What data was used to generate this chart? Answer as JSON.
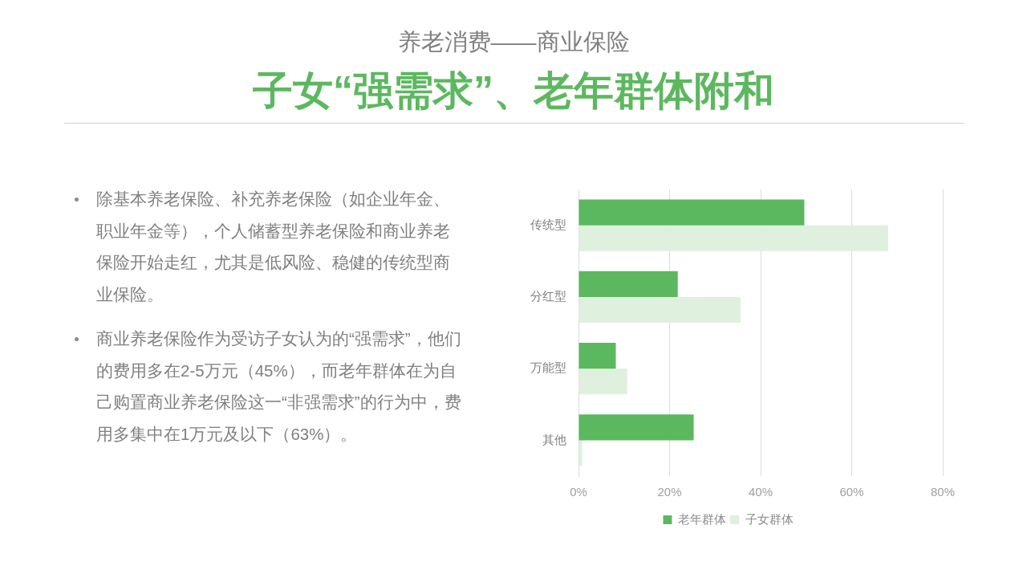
{
  "chart_data": {
    "type": "bar",
    "orientation": "horizontal",
    "subtitle": "养老消费——商业保险",
    "title": "子女“强需求”、老年群体附和",
    "annotations": [
      "除基本养老保险、补充养老保险（如企业年金、职业年金等），个人储蓄型养老保险和商业养老保险开始走红，尤其是低风险、稳健的传统型商业保险。",
      "商业养老保险作为受访子女认为的“强需求”，他们的费用多在2-5万元（45%），而老年群体在为自己购置商业养老保险这一“非强需求”的行为中，费用多集中在1万元及以下（63%）。"
    ],
    "categories": [
      "传统型",
      "分红型",
      "万能型",
      "其他"
    ],
    "series": [
      {
        "name": "老年群体",
        "color": "#5cb85f",
        "values": [
          49.6,
          21.8,
          8.2,
          25.3
        ]
      },
      {
        "name": "子女群体",
        "color": "#dff0de",
        "values": [
          68.0,
          35.6,
          10.7,
          0.8
        ]
      }
    ],
    "xlim": [
      0,
      80
    ],
    "xticks": [
      {
        "value": 0,
        "label": "0%"
      },
      {
        "value": 20,
        "label": "20%"
      },
      {
        "value": 40,
        "label": "40%"
      },
      {
        "value": 60,
        "label": "60%"
      },
      {
        "value": 80,
        "label": "80%"
      }
    ],
    "grid": "x",
    "legend": "bottom"
  }
}
